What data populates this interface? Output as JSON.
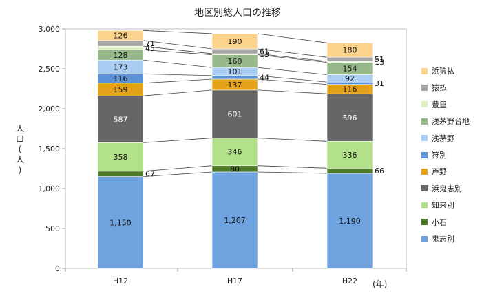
{
  "chart_data": {
    "type": "bar",
    "stacked": true,
    "title": "地区別総人口の推移",
    "ylabel": [
      "人",
      "口",
      "(",
      "人",
      ")"
    ],
    "xunit": "(年)",
    "categories": [
      "H12",
      "H17",
      "H22"
    ],
    "ylim": [
      0,
      3000
    ],
    "yticks": [
      "0",
      "500",
      "1,000",
      "1,500",
      "2,000",
      "2,500",
      "3,000"
    ],
    "ytick_values": [
      0,
      500,
      1000,
      1500,
      2000,
      2500,
      3000
    ],
    "grid": false,
    "legend_position": "right",
    "series": [
      {
        "name": "鬼志別",
        "color": "#6fa3e0",
        "values": [
          1150,
          1207,
          1190
        ],
        "labels": [
          "1,150",
          "1,207",
          "1,190"
        ]
      },
      {
        "name": "小石",
        "color": "#4f7a28",
        "values": [
          67,
          80,
          66
        ],
        "labels": [
          "67",
          "80",
          "66"
        ]
      },
      {
        "name": "知来別",
        "color": "#b3e08a",
        "values": [
          358,
          346,
          336
        ],
        "labels": [
          "358",
          "346",
          "336"
        ]
      },
      {
        "name": "浜鬼志別",
        "color": "#666666",
        "values": [
          587,
          601,
          596
        ],
        "labels": [
          "587",
          "601",
          "596"
        ]
      },
      {
        "name": "芦野",
        "color": "#e3a21a",
        "values": [
          159,
          137,
          116
        ],
        "labels": [
          "159",
          "137",
          "116"
        ]
      },
      {
        "name": "狩別",
        "color": "#5b92d8",
        "values": [
          116,
          44,
          31
        ],
        "labels": [
          "116",
          "44",
          "31"
        ]
      },
      {
        "name": "浅茅野",
        "color": "#a8ccf2",
        "values": [
          173,
          101,
          92
        ],
        "labels": [
          "173",
          "101",
          "92"
        ]
      },
      {
        "name": "浅茅野台地",
        "color": "#97b88a",
        "values": [
          128,
          160,
          154
        ],
        "labels": [
          "128",
          "160",
          "154"
        ]
      },
      {
        "name": "豊里",
        "color": "#dff0c4",
        "values": [
          45,
          13,
          13
        ],
        "labels": [
          "45",
          "13",
          "13"
        ]
      },
      {
        "name": "猿払",
        "color": "#a6a6a6",
        "values": [
          71,
          61,
          51
        ],
        "labels": [
          "71",
          "61",
          "51"
        ]
      },
      {
        "name": "浜猿払",
        "color": "#fbd38c",
        "values": [
          126,
          190,
          180
        ],
        "labels": [
          "126",
          "190",
          "180"
        ]
      }
    ]
  }
}
